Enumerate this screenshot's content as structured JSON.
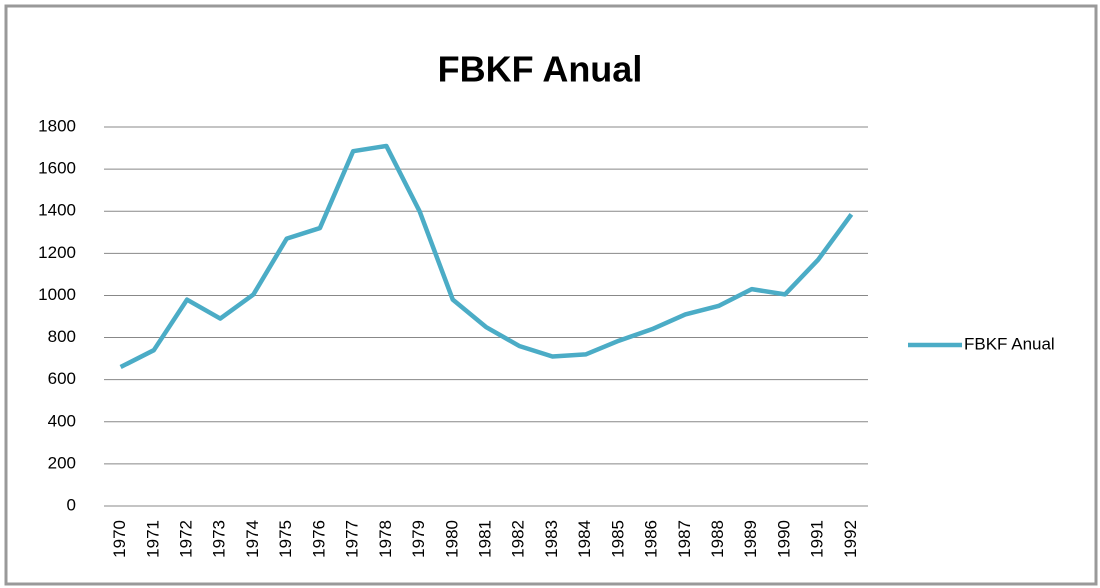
{
  "chart_data": {
    "type": "line",
    "title": "FBKF Anual",
    "categories": [
      "1970",
      "1971",
      "1972",
      "1973",
      "1974",
      "1975",
      "1976",
      "1977",
      "1978",
      "1979",
      "1980",
      "1981",
      "1982",
      "1983",
      "1984",
      "1985",
      "1986",
      "1987",
      "1988",
      "1989",
      "1990",
      "1991",
      "1992"
    ],
    "series": [
      {
        "name": "FBKF Anual",
        "color": "#4bacc6",
        "values": [
          660,
          740,
          980,
          890,
          1005,
          1270,
          1320,
          1685,
          1710,
          1400,
          980,
          850,
          760,
          710,
          720,
          785,
          840,
          910,
          950,
          1030,
          1005,
          1170,
          1385
        ]
      }
    ],
    "ylim": [
      0,
      1800
    ],
    "yticks": [
      0,
      200,
      400,
      600,
      800,
      1000,
      1200,
      1400,
      1600,
      1800
    ],
    "grid": true,
    "legend": "right"
  }
}
